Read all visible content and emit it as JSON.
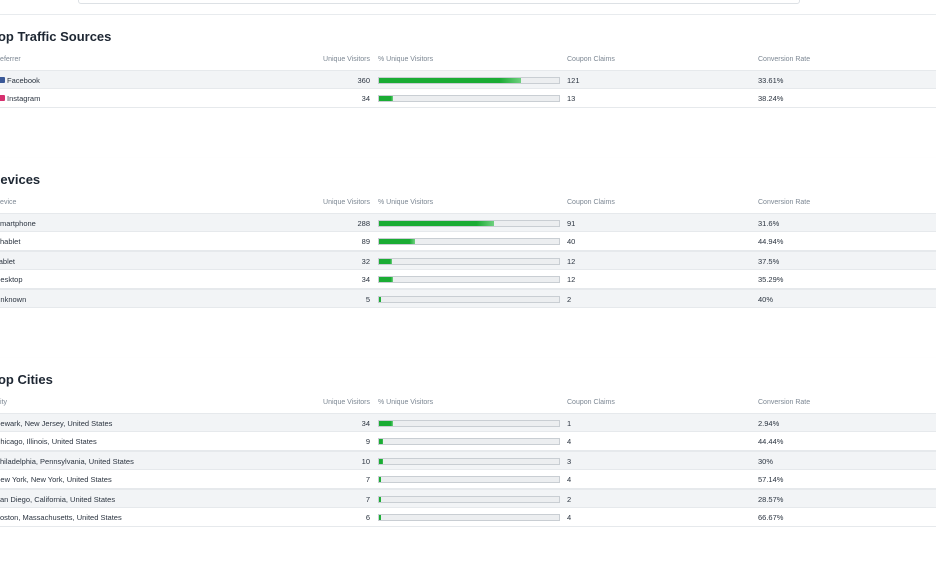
{
  "sections": [
    {
      "title": "Top Traffic Sources",
      "columns": [
        "Referrer",
        "Unique Visitors",
        "% Unique Visitors",
        "Coupon Claims",
        "Conversion Rate"
      ],
      "rows": [
        {
          "label": "Facebook",
          "visitors": "360",
          "pct": 79,
          "claims": "121",
          "rate": "33.61%"
        },
        {
          "label": "Instagram",
          "visitors": "34",
          "pct": 8,
          "claims": "13",
          "rate": "38.24%"
        }
      ]
    },
    {
      "title": "Devices",
      "columns": [
        "Device",
        "Unique Visitors",
        "% Unique Visitors",
        "Coupon Claims",
        "Conversion Rate"
      ],
      "rows": [
        {
          "label": "Smartphone",
          "visitors": "288",
          "pct": 64,
          "claims": "91",
          "rate": "31.6%"
        },
        {
          "label": "Phablet",
          "visitors": "89",
          "pct": 20,
          "claims": "40",
          "rate": "44.94%"
        },
        {
          "label": "Tablet",
          "visitors": "32",
          "pct": 7,
          "claims": "12",
          "rate": "37.5%"
        },
        {
          "label": "Desktop",
          "visitors": "34",
          "pct": 8,
          "claims": "12",
          "rate": "35.29%"
        },
        {
          "label": "Unknown",
          "visitors": "5",
          "pct": 1,
          "claims": "2",
          "rate": "40%"
        }
      ]
    },
    {
      "title": "Top Cities",
      "columns": [
        "City",
        "Unique Visitors",
        "% Unique Visitors",
        "Coupon Claims",
        "Conversion Rate"
      ],
      "rows": [
        {
          "label": "Newark, New Jersey, United States",
          "visitors": "34",
          "pct": 8,
          "claims": "1",
          "rate": "2.94%"
        },
        {
          "label": "Chicago, Illinois, United States",
          "visitors": "9",
          "pct": 2,
          "claims": "4",
          "rate": "44.44%"
        },
        {
          "label": "Philadelphia, Pennsylvania, United States",
          "visitors": "10",
          "pct": 2,
          "claims": "3",
          "rate": "30%"
        },
        {
          "label": "New York, New York, United States",
          "visitors": "7",
          "pct": 1,
          "claims": "4",
          "rate": "57.14%"
        },
        {
          "label": "San Diego, California, United States",
          "visitors": "7",
          "pct": 1,
          "claims": "2",
          "rate": "28.57%"
        },
        {
          "label": "Boston, Massachusetts, United States",
          "visitors": "6",
          "pct": 1,
          "claims": "4",
          "rate": "66.67%"
        }
      ]
    }
  ]
}
